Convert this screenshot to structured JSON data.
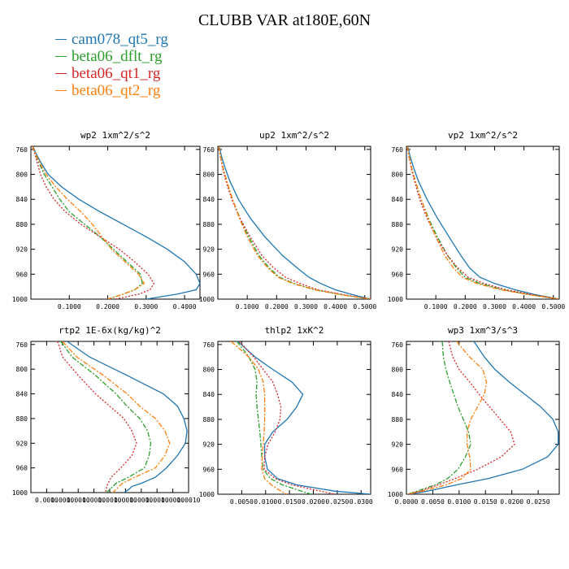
{
  "title": "CLUBB VAR at180E,60N",
  "series": [
    {
      "name": "cam078_qt5_rg",
      "color": "#1f77b4",
      "dash": ""
    },
    {
      "name": "beta06_dflt_rg",
      "color": "#2ca02c",
      "dash": "6,2,2,2"
    },
    {
      "name": "beta06_qt1_rg",
      "color": "#d62728",
      "dash": "2,2"
    },
    {
      "name": "beta06_qt2_rg",
      "color": "#ff7f0e",
      "dash": "6,2,2,2"
    }
  ],
  "chart_data": [
    {
      "type": "line",
      "title": "wp2   1xm^2/s^2",
      "y_ticks": [
        760,
        800,
        840,
        880,
        920,
        960,
        1000
      ],
      "ylim": [
        755,
        1000
      ],
      "xlim": [
        0,
        0.44
      ],
      "x_ticks": [
        0.1,
        0.2,
        0.3,
        0.4
      ],
      "x_tick_labels": [
        "0.1000",
        "0.2000",
        "0.3000",
        "0.4000"
      ],
      "y": [
        755,
        765,
        780,
        800,
        820,
        840,
        860,
        880,
        900,
        920,
        940,
        960,
        975,
        985,
        992,
        1000
      ],
      "series": [
        {
          "name": "cam078_qt5_rg",
          "values": [
            0.005,
            0.012,
            0.025,
            0.045,
            0.08,
            0.125,
            0.18,
            0.24,
            0.3,
            0.355,
            0.4,
            0.43,
            0.44,
            0.43,
            0.38,
            0.3
          ]
        },
        {
          "name": "beta06_dflt_rg",
          "values": [
            0.004,
            0.01,
            0.02,
            0.035,
            0.055,
            0.075,
            0.1,
            0.14,
            0.18,
            0.215,
            0.25,
            0.285,
            0.29,
            0.27,
            0.24,
            0.2
          ]
        },
        {
          "name": "beta06_qt1_rg",
          "values": [
            0.004,
            0.009,
            0.016,
            0.025,
            0.04,
            0.06,
            0.09,
            0.13,
            0.18,
            0.23,
            0.27,
            0.305,
            0.32,
            0.31,
            0.28,
            0.22
          ]
        },
        {
          "name": "beta06_qt2_rg",
          "values": [
            0.004,
            0.011,
            0.022,
            0.04,
            0.065,
            0.095,
            0.13,
            0.16,
            0.185,
            0.21,
            0.245,
            0.28,
            0.295,
            0.27,
            0.24,
            0.2
          ]
        }
      ]
    },
    {
      "type": "line",
      "title": "up2   1xm^2/s^2",
      "y_ticks": [
        760,
        800,
        840,
        880,
        920,
        960,
        1000
      ],
      "ylim": [
        755,
        1000
      ],
      "xlim": [
        0,
        0.52
      ],
      "x_ticks": [
        0.1,
        0.2,
        0.3,
        0.4,
        0.5
      ],
      "x_tick_labels": [
        "0.1000",
        "0.2000",
        "0.3000",
        "0.4000",
        "0.5000"
      ],
      "y": [
        755,
        770,
        790,
        810,
        840,
        870,
        900,
        930,
        950,
        965,
        975,
        985,
        993,
        1000
      ],
      "series": [
        {
          "name": "cam078_qt5_rg",
          "values": [
            0.005,
            0.012,
            0.025,
            0.04,
            0.07,
            0.11,
            0.16,
            0.22,
            0.27,
            0.31,
            0.35,
            0.4,
            0.46,
            0.52
          ]
        },
        {
          "name": "beta06_dflt_rg",
          "values": [
            0.004,
            0.009,
            0.018,
            0.03,
            0.05,
            0.075,
            0.105,
            0.14,
            0.175,
            0.21,
            0.26,
            0.33,
            0.42,
            0.52
          ]
        },
        {
          "name": "beta06_qt1_rg",
          "values": [
            0.004,
            0.008,
            0.016,
            0.027,
            0.047,
            0.075,
            0.11,
            0.15,
            0.19,
            0.23,
            0.28,
            0.34,
            0.43,
            0.52
          ]
        },
        {
          "name": "beta06_qt2_rg",
          "values": [
            0.004,
            0.009,
            0.018,
            0.03,
            0.05,
            0.073,
            0.1,
            0.135,
            0.17,
            0.205,
            0.255,
            0.33,
            0.42,
            0.52
          ]
        }
      ]
    },
    {
      "type": "line",
      "title": "vp2   1xm^2/s^2",
      "y_ticks": [
        760,
        800,
        840,
        880,
        920,
        960,
        1000
      ],
      "ylim": [
        755,
        1000
      ],
      "xlim": [
        0,
        0.52
      ],
      "x_ticks": [
        0.1,
        0.2,
        0.3,
        0.4,
        0.5
      ],
      "x_tick_labels": [
        "0.1000",
        "0.2000",
        "0.3000",
        "0.4000",
        "0.5000"
      ],
      "y": [
        755,
        770,
        790,
        810,
        840,
        870,
        900,
        930,
        950,
        965,
        975,
        985,
        993,
        1000
      ],
      "series": [
        {
          "name": "cam078_qt5_rg",
          "values": [
            0.005,
            0.012,
            0.025,
            0.04,
            0.07,
            0.105,
            0.145,
            0.185,
            0.215,
            0.25,
            0.3,
            0.37,
            0.44,
            0.52
          ]
        },
        {
          "name": "beta06_dflt_rg",
          "values": [
            0.004,
            0.009,
            0.018,
            0.03,
            0.05,
            0.075,
            0.105,
            0.14,
            0.17,
            0.2,
            0.25,
            0.33,
            0.42,
            0.52
          ]
        },
        {
          "name": "beta06_qt1_rg",
          "values": [
            0.004,
            0.008,
            0.016,
            0.027,
            0.045,
            0.07,
            0.1,
            0.14,
            0.175,
            0.21,
            0.265,
            0.34,
            0.43,
            0.52
          ]
        },
        {
          "name": "beta06_qt2_rg",
          "values": [
            0.004,
            0.009,
            0.018,
            0.03,
            0.05,
            0.073,
            0.1,
            0.13,
            0.16,
            0.19,
            0.24,
            0.32,
            0.42,
            0.52
          ]
        }
      ]
    },
    {
      "type": "line",
      "title": "rtp2   1E-6x(kg/kg)^2",
      "y_ticks": [
        760,
        800,
        840,
        880,
        920,
        960,
        1000
      ],
      "ylim": [
        755,
        1000
      ],
      "xlim": [
        0,
        10
      ],
      "x_ticks": [
        1,
        2,
        3,
        4,
        5,
        6,
        7,
        8,
        9,
        10
      ],
      "x_tick_labels": [
        "0.0010",
        "0.0010",
        "0.0010",
        "0.0010",
        "0.0010",
        "0.0010",
        "0.0010",
        "0.0010",
        "0.0010",
        "0.0010"
      ],
      "y": [
        755,
        780,
        810,
        840,
        860,
        880,
        900,
        920,
        940,
        960,
        975,
        985,
        990,
        995,
        1000
      ],
      "series": [
        {
          "name": "cam078_qt5_rg",
          "values": [
            2.3,
            3.7,
            6.1,
            8.4,
            9.3,
            9.7,
            9.9,
            9.8,
            9.3,
            8.6,
            7.9,
            7.0,
            6.4,
            6.2,
            5.9
          ]
        },
        {
          "name": "beta06_dflt_rg",
          "values": [
            1.9,
            2.6,
            4.1,
            5.4,
            6.1,
            6.9,
            7.4,
            7.6,
            7.5,
            7.2,
            6.2,
            5.4,
            5.2,
            5.0,
            4.8
          ]
        },
        {
          "name": "beta06_qt1_rg",
          "values": [
            1.7,
            2.0,
            3.0,
            4.1,
            5.0,
            5.9,
            6.4,
            6.7,
            6.4,
            5.7,
            5.1,
            4.9,
            4.8,
            4.8,
            4.7
          ]
        },
        {
          "name": "beta06_qt2_rg",
          "values": [
            2.0,
            2.9,
            4.6,
            6.1,
            6.9,
            7.9,
            8.5,
            8.8,
            8.5,
            7.9,
            6.6,
            5.8,
            5.6,
            5.4,
            5.2
          ]
        }
      ]
    },
    {
      "type": "line",
      "title": "thlp2   1xK^2",
      "y_ticks": [
        760,
        800,
        840,
        880,
        920,
        960,
        1000
      ],
      "ylim": [
        755,
        1000
      ],
      "xlim": [
        0,
        0.032
      ],
      "x_ticks": [
        0.005,
        0.01,
        0.015,
        0.02,
        0.025,
        0.03
      ],
      "x_tick_labels": [
        "0.0050",
        "0.0100",
        "0.0150",
        "0.0200",
        "0.0250",
        "0.0300"
      ],
      "y": [
        755,
        780,
        800,
        820,
        840,
        860,
        880,
        900,
        920,
        940,
        960,
        975,
        985,
        995,
        1000
      ],
      "series": [
        {
          "name": "cam078_qt5_rg",
          "values": [
            0.0042,
            0.0078,
            0.0115,
            0.0155,
            0.0178,
            0.0165,
            0.0145,
            0.0115,
            0.0098,
            0.0098,
            0.0104,
            0.0125,
            0.0165,
            0.0245,
            0.032
          ]
        },
        {
          "name": "beta06_dflt_rg",
          "values": [
            0.004,
            0.0065,
            0.0078,
            0.0082,
            0.008,
            0.0082,
            0.0085,
            0.0088,
            0.009,
            0.0092,
            0.0095,
            0.011,
            0.0135,
            0.0175,
            0.0195
          ]
        },
        {
          "name": "beta06_qt1_rg",
          "values": [
            0.0045,
            0.0075,
            0.0095,
            0.0115,
            0.0125,
            0.0132,
            0.013,
            0.012,
            0.0105,
            0.0098,
            0.0097,
            0.012,
            0.0155,
            0.0215,
            0.0245
          ]
        },
        {
          "name": "beta06_qt2_rg",
          "values": [
            0.0028,
            0.0065,
            0.0085,
            0.0095,
            0.0098,
            0.0098,
            0.0098,
            0.0097,
            0.0095,
            0.0093,
            0.0092,
            0.0098,
            0.0112,
            0.0132,
            0.0145
          ]
        }
      ]
    },
    {
      "type": "line",
      "title": "wp3   1xm^3/s^3",
      "y_ticks": [
        760,
        800,
        840,
        880,
        920,
        960,
        1000
      ],
      "ylim": [
        755,
        1000
      ],
      "xlim": [
        0,
        0.029
      ],
      "x_ticks": [
        0,
        0.005,
        0.01,
        0.015,
        0.02,
        0.025
      ],
      "x_tick_labels": [
        "0.0000",
        "0.0050",
        "0.0100",
        "0.0150",
        "0.0200",
        "0.0250"
      ],
      "y": [
        755,
        780,
        800,
        820,
        840,
        860,
        880,
        900,
        920,
        940,
        960,
        975,
        985,
        995,
        1000
      ],
      "series": [
        {
          "name": "cam078_qt5_rg",
          "values": [
            0.0128,
            0.0148,
            0.0168,
            0.0195,
            0.0225,
            0.0255,
            0.0278,
            0.0288,
            0.0288,
            0.0268,
            0.022,
            0.0155,
            0.0095,
            0.004,
            0.0005
          ]
        },
        {
          "name": "beta06_dflt_rg",
          "values": [
            0.0068,
            0.007,
            0.0075,
            0.0082,
            0.009,
            0.0098,
            0.0108,
            0.0118,
            0.0122,
            0.0112,
            0.0098,
            0.0078,
            0.0055,
            0.002,
            0.0002
          ]
        },
        {
          "name": "beta06_qt1_rg",
          "values": [
            0.008,
            0.0088,
            0.01,
            0.012,
            0.0138,
            0.0158,
            0.0178,
            0.0198,
            0.0205,
            0.018,
            0.0135,
            0.0092,
            0.006,
            0.0025,
            0.0003
          ]
        },
        {
          "name": "beta06_qt2_rg",
          "values": [
            0.0095,
            0.012,
            0.0145,
            0.0152,
            0.0148,
            0.0135,
            0.0122,
            0.0115,
            0.0115,
            0.012,
            0.0122,
            0.0105,
            0.0075,
            0.003,
            0.0003
          ]
        }
      ]
    }
  ]
}
